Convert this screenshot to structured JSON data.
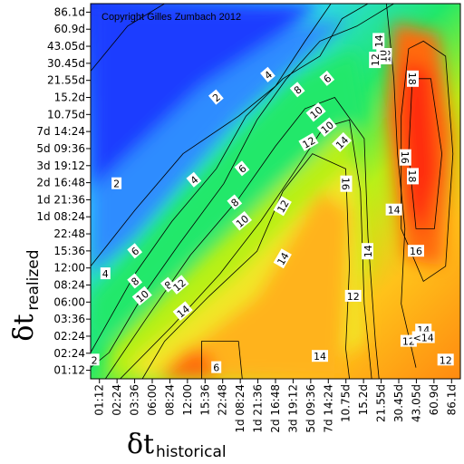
{
  "chart_data": {
    "type": "heatmap",
    "subtype": "filled-contour",
    "title": "",
    "annotation": "Copyright Gilles Zumbach 2012",
    "xlabel": {
      "symbol": "δt",
      "subscript": "historical"
    },
    "ylabel": {
      "symbol": "δt",
      "subscript": "realized"
    },
    "x_ticks": [
      "01:12",
      "02:24",
      "03:36",
      "06:00",
      "08:24",
      "12:00",
      "15:36",
      "22:48",
      "1d 08:24",
      "1d 21:36",
      "2d 16:48",
      "3d 19:12",
      "5d 09:36",
      "7d 14:24",
      "10.75d",
      "15.2d",
      "21.55d",
      "30.45d",
      "43.05d",
      "60.9d",
      "86.1d"
    ],
    "y_ticks": [
      "86.1d",
      "60.9d",
      "43.05d",
      "30.45d",
      "21.55d",
      "15.2d",
      "10.75d",
      "7d 14:24",
      "5d 09:36",
      "3d 19:12",
      "2d 16:48",
      "1d 21:36",
      "1d 08:24",
      "22:48",
      "15:36",
      "12:00",
      "08:24",
      "06:00",
      "03:36",
      "02:24",
      "02:24",
      "01:12"
    ],
    "contour_levels": [
      2,
      4,
      6,
      8,
      10,
      12,
      14,
      16,
      18
    ],
    "contour_label_values": [
      "2",
      "2",
      "2",
      "4",
      "4",
      "4",
      "6",
      "6",
      "6",
      "8",
      "8",
      "8",
      "8",
      "10",
      "10",
      "10",
      "10",
      "12",
      "12",
      "12",
      "12",
      "12",
      "12",
      "14",
      "14",
      "14",
      "14",
      "14",
      "14",
      "14",
      "16",
      "16",
      "16",
      "16",
      "18",
      "18",
      "6",
      "<14",
      "8",
      "10",
      "14",
      "12"
    ],
    "colormap": [
      "#1a3cff",
      "#2f8cff",
      "#2ed8ff",
      "#20e86a",
      "#4ff020",
      "#b8f018",
      "#f2e628",
      "#ffb31a",
      "#ff6a10",
      "#ff2a0a"
    ],
    "grid": false,
    "legend": "none"
  }
}
